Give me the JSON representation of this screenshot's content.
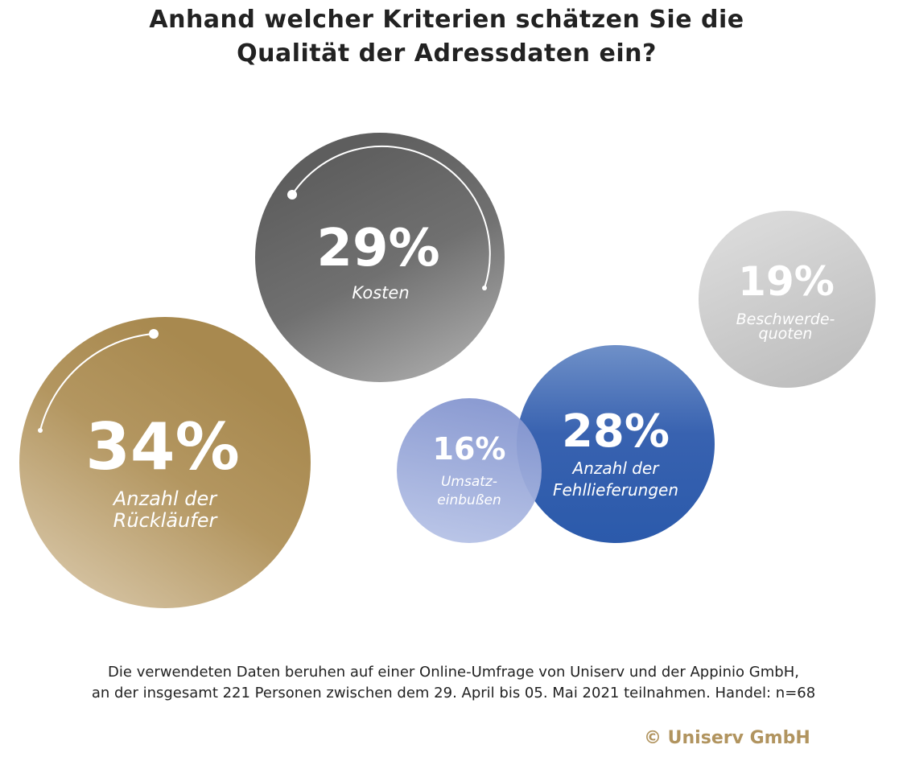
{
  "title": {
    "line1": "Anhand welcher Kriterien schätzen Sie die",
    "line2": "Qualität der Adressdaten ein?"
  },
  "chart_data": {
    "type": "bubble",
    "unit": "%",
    "items": [
      {
        "value": 34,
        "label_text": "34%",
        "label_lines": [
          "Anzahl der",
          "Rückläufer"
        ],
        "color": "#a88a52"
      },
      {
        "value": 29,
        "label_text": "29%",
        "label_lines": [
          "Kosten"
        ],
        "color": "#6a6a6a"
      },
      {
        "value": 19,
        "label_text": "19%",
        "label_lines": [
          "Beschwerde-",
          "quoten"
        ],
        "color": "#c4c4c4"
      },
      {
        "value": 16,
        "label_text": "16%",
        "label_lines": [
          "Umsatz-",
          "einbußen"
        ],
        "color": "#8f9fd4"
      },
      {
        "value": 28,
        "label_text": "28%",
        "label_lines": [
          "Anzahl der",
          "Fehllieferungen"
        ],
        "color": "#2f5ead"
      }
    ]
  },
  "footnote": {
    "line1": "Die verwendeten Daten beruhen auf einer Online-Umfrage von Uniserv und der Appinio GmbH,",
    "line2": "an der insgesamt 221 Personen zwischen dem 29. April bis 05. Mai 2021 teilnahmen. Handel: n=68"
  },
  "copyright": "© Uniserv GmbH"
}
